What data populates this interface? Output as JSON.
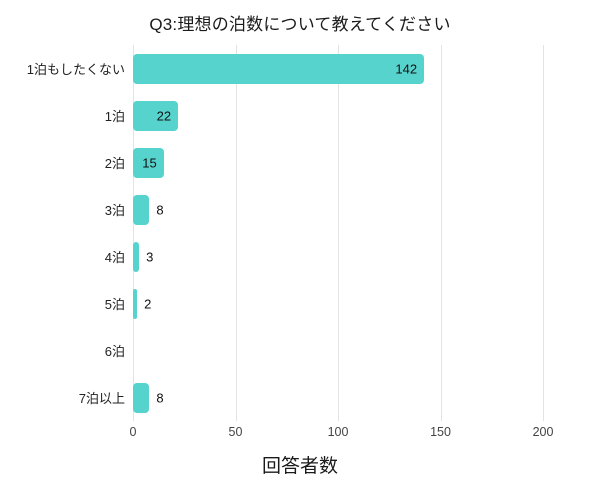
{
  "chart_data": {
    "type": "bar",
    "orientation": "horizontal",
    "title": "Q3:理想の泊数について教えてください",
    "categories": [
      "1泊もしたくない",
      "1泊",
      "2泊",
      "3泊",
      "4泊",
      "5泊",
      "6泊",
      "7泊以上"
    ],
    "values": [
      142,
      22,
      15,
      8,
      3,
      2,
      0,
      8
    ],
    "xlabel": "回答者数",
    "xlim": [
      0,
      200
    ],
    "xticks": [
      0,
      50,
      100,
      150,
      200
    ],
    "grid": true,
    "legend": false,
    "bar_color": "#57d3ce",
    "grid_color": "#e3e3e3",
    "value_labels": true
  }
}
